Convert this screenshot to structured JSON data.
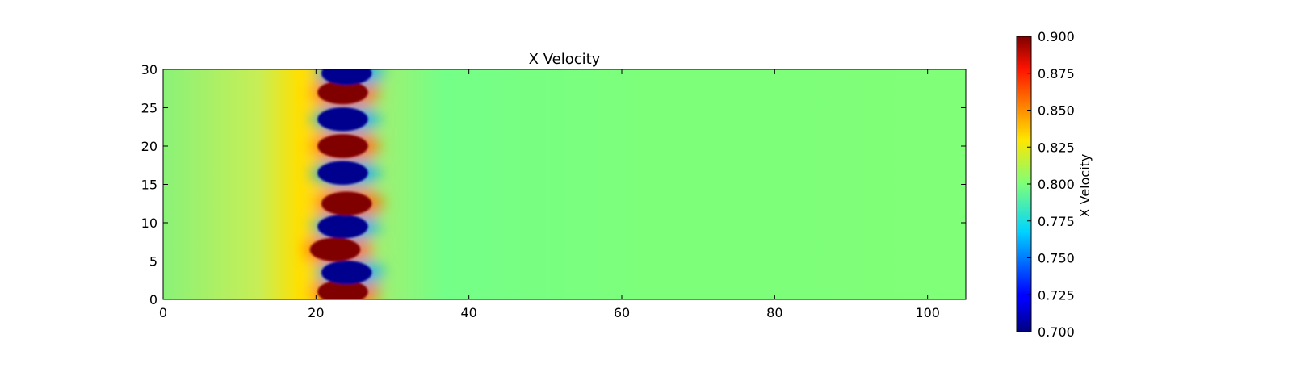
{
  "chart_data": {
    "type": "heatmap",
    "title": "X Velocity",
    "xlabel": "",
    "ylabel": "",
    "xlim": [
      0,
      105
    ],
    "ylim": [
      0,
      30
    ],
    "x_ticks": [
      0,
      20,
      40,
      60,
      80,
      100
    ],
    "y_ticks": [
      0,
      5,
      10,
      15,
      20,
      25,
      30
    ],
    "grid": false,
    "colormap": "jet",
    "colorbar": {
      "label": "X Velocity",
      "range": [
        0.7,
        0.9
      ],
      "ticks": [
        "0.700",
        "0.725",
        "0.750",
        "0.775",
        "0.800",
        "0.825",
        "0.850",
        "0.875",
        "0.900"
      ],
      "placement": "right"
    },
    "background_value": 0.8,
    "features": [
      {
        "kind": "high",
        "x": 23.5,
        "y": 1.0,
        "value": 0.9
      },
      {
        "kind": "low",
        "x": 24.0,
        "y": 3.5,
        "value": 0.7
      },
      {
        "kind": "high",
        "x": 22.5,
        "y": 6.5,
        "value": 0.9
      },
      {
        "kind": "low",
        "x": 23.5,
        "y": 9.5,
        "value": 0.7
      },
      {
        "kind": "high",
        "x": 24.0,
        "y": 12.5,
        "value": 0.9
      },
      {
        "kind": "low",
        "x": 23.5,
        "y": 16.5,
        "value": 0.7
      },
      {
        "kind": "high",
        "x": 23.5,
        "y": 20.0,
        "value": 0.9
      },
      {
        "kind": "low",
        "x": 23.5,
        "y": 23.5,
        "value": 0.7
      },
      {
        "kind": "high",
        "x": 23.5,
        "y": 27.0,
        "value": 0.9
      },
      {
        "kind": "low",
        "x": 24.0,
        "y": 29.5,
        "value": 0.7
      }
    ]
  }
}
